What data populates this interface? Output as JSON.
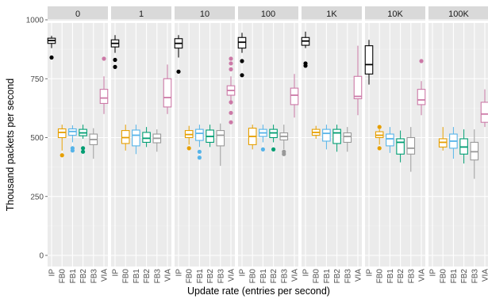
{
  "chart_data": {
    "type": "boxplot",
    "xlabel": "Update rate (entries per second)",
    "ylabel": "Thousand packets per second",
    "ylim": [
      0,
      1000
    ],
    "yticks": [
      0,
      250,
      500,
      750,
      1000
    ],
    "grid": true,
    "facet_strips": true,
    "categories": [
      "IP",
      "FB0",
      "FB1",
      "FB2",
      "FB3",
      "VIA"
    ],
    "series_colors": {
      "IP": "#000000",
      "FB0": "#e69f00",
      "FB1": "#56b4e9",
      "FB2": "#009e73",
      "FB3": "#999999",
      "VIA": "#cc79a7"
    },
    "panels": [
      {
        "label": "0",
        "boxes": [
          {
            "cat": "IP",
            "min": 880,
            "q1": 900,
            "median": 912,
            "q3": 922,
            "max": 932,
            "outliers": [
              840
            ]
          },
          {
            "cat": "FB0",
            "min": 445,
            "q1": 500,
            "median": 522,
            "q3": 537,
            "max": 555,
            "outliers": [
              425
            ]
          },
          {
            "cat": "FB1",
            "min": 480,
            "q1": 510,
            "median": 526,
            "q3": 537,
            "max": 552,
            "outliers": [
              455,
              445
            ]
          },
          {
            "cat": "FB2",
            "min": 495,
            "q1": 508,
            "median": 520,
            "q3": 535,
            "max": 555,
            "outliers": [
              455,
              440
            ]
          },
          {
            "cat": "FB3",
            "min": 410,
            "q1": 470,
            "median": 492,
            "q3": 515,
            "max": 540,
            "outliers": []
          },
          {
            "cat": "VIA",
            "min": 600,
            "q1": 645,
            "median": 668,
            "q3": 705,
            "max": 760,
            "outliers": [
              835
            ]
          }
        ]
      },
      {
        "label": "1",
        "boxes": [
          {
            "cat": "IP",
            "min": 860,
            "q1": 885,
            "median": 900,
            "q3": 915,
            "max": 935,
            "outliers": [
              830,
              800
            ]
          },
          {
            "cat": "FB0",
            "min": 445,
            "q1": 475,
            "median": 500,
            "q3": 530,
            "max": 555,
            "outliers": []
          },
          {
            "cat": "FB1",
            "min": 430,
            "q1": 465,
            "median": 510,
            "q3": 532,
            "max": 555,
            "outliers": []
          },
          {
            "cat": "FB2",
            "min": 460,
            "q1": 480,
            "median": 497,
            "q3": 522,
            "max": 545,
            "outliers": []
          },
          {
            "cat": "FB3",
            "min": 440,
            "q1": 478,
            "median": 497,
            "q3": 515,
            "max": 535,
            "outliers": []
          },
          {
            "cat": "VIA",
            "min": 600,
            "q1": 630,
            "median": 670,
            "q3": 750,
            "max": 810,
            "outliers": []
          }
        ]
      },
      {
        "label": "10",
        "boxes": [
          {
            "cat": "IP",
            "min": 840,
            "q1": 880,
            "median": 900,
            "q3": 920,
            "max": 935,
            "outliers": [
              780
            ]
          },
          {
            "cat": "FB0",
            "min": 470,
            "q1": 500,
            "median": 513,
            "q3": 530,
            "max": 550,
            "outliers": [
              455
            ]
          },
          {
            "cat": "FB1",
            "min": 460,
            "q1": 488,
            "median": 518,
            "q3": 535,
            "max": 555,
            "outliers": [
              440,
              415
            ]
          },
          {
            "cat": "FB2",
            "min": 460,
            "q1": 480,
            "median": 505,
            "q3": 532,
            "max": 555,
            "outliers": []
          },
          {
            "cat": "FB3",
            "min": 380,
            "q1": 465,
            "median": 510,
            "q3": 530,
            "max": 560,
            "outliers": []
          },
          {
            "cat": "VIA",
            "min": 640,
            "q1": 680,
            "median": 700,
            "q3": 720,
            "max": 760,
            "outliers": [
              835,
              815,
              790,
              650,
              605,
              565
            ]
          }
        ]
      },
      {
        "label": "100",
        "boxes": [
          {
            "cat": "IP",
            "min": 860,
            "q1": 880,
            "median": 905,
            "q3": 925,
            "max": 945,
            "outliers": [
              825,
              765
            ]
          },
          {
            "cat": "FB0",
            "min": 450,
            "q1": 470,
            "median": 505,
            "q3": 540,
            "max": 555,
            "outliers": []
          },
          {
            "cat": "FB1",
            "min": 480,
            "q1": 505,
            "median": 520,
            "q3": 535,
            "max": 555,
            "outliers": [
              450
            ]
          },
          {
            "cat": "FB2",
            "min": 480,
            "q1": 500,
            "median": 520,
            "q3": 535,
            "max": 555,
            "outliers": [
              450
            ]
          },
          {
            "cat": "FB3",
            "min": 450,
            "q1": 490,
            "median": 505,
            "q3": 520,
            "max": 555,
            "outliers": [
              440,
              430
            ]
          },
          {
            "cat": "VIA",
            "min": 585,
            "q1": 640,
            "median": 680,
            "q3": 710,
            "max": 770,
            "outliers": []
          }
        ]
      },
      {
        "label": "1K",
        "boxes": [
          {
            "cat": "IP",
            "min": 880,
            "q1": 892,
            "median": 910,
            "q3": 925,
            "max": 950,
            "outliers": [
              815,
              805
            ]
          },
          {
            "cat": "FB0",
            "min": 495,
            "q1": 510,
            "median": 522,
            "q3": 535,
            "max": 550,
            "outliers": []
          },
          {
            "cat": "FB1",
            "min": 450,
            "q1": 485,
            "median": 518,
            "q3": 535,
            "max": 555,
            "outliers": []
          },
          {
            "cat": "FB2",
            "min": 440,
            "q1": 475,
            "median": 520,
            "q3": 535,
            "max": 555,
            "outliers": []
          },
          {
            "cat": "FB3",
            "min": 440,
            "q1": 480,
            "median": 505,
            "q3": 520,
            "max": 545,
            "outliers": []
          },
          {
            "cat": "VIA",
            "min": 595,
            "q1": 665,
            "median": 675,
            "q3": 760,
            "max": 890,
            "outliers": []
          }
        ]
      },
      {
        "label": "10K",
        "boxes": [
          {
            "cat": "IP",
            "min": 725,
            "q1": 770,
            "median": 810,
            "q3": 890,
            "max": 915,
            "outliers": []
          },
          {
            "cat": "FB0",
            "min": 470,
            "q1": 500,
            "median": 510,
            "q3": 525,
            "max": 535,
            "outliers": [
              545,
              455
            ]
          },
          {
            "cat": "FB1",
            "min": 435,
            "q1": 465,
            "median": 495,
            "q3": 515,
            "max": 545,
            "outliers": []
          },
          {
            "cat": "FB2",
            "min": 395,
            "q1": 430,
            "median": 480,
            "q3": 495,
            "max": 530,
            "outliers": []
          },
          {
            "cat": "FB3",
            "min": 355,
            "q1": 430,
            "median": 455,
            "q3": 500,
            "max": 545,
            "outliers": []
          },
          {
            "cat": "VIA",
            "min": 595,
            "q1": 640,
            "median": 660,
            "q3": 705,
            "max": 740,
            "outliers": [
              825
            ]
          }
        ]
      },
      {
        "label": "100K",
        "boxes": [
          {
            "cat": "IP",
            "min": null,
            "q1": null,
            "median": null,
            "q3": null,
            "max": null,
            "outliers": []
          },
          {
            "cat": "FB0",
            "min": 445,
            "q1": 460,
            "median": 480,
            "q3": 495,
            "max": 545,
            "outliers": []
          },
          {
            "cat": "FB1",
            "min": 410,
            "q1": 455,
            "median": 485,
            "q3": 515,
            "max": 545,
            "outliers": []
          },
          {
            "cat": "FB2",
            "min": 390,
            "q1": 430,
            "median": 460,
            "q3": 495,
            "max": 535,
            "outliers": []
          },
          {
            "cat": "FB3",
            "min": 325,
            "q1": 405,
            "median": 440,
            "q3": 480,
            "max": 535,
            "outliers": []
          },
          {
            "cat": "VIA",
            "min": 545,
            "q1": 565,
            "median": 600,
            "q3": 650,
            "max": 705,
            "outliers": []
          }
        ]
      }
    ]
  }
}
